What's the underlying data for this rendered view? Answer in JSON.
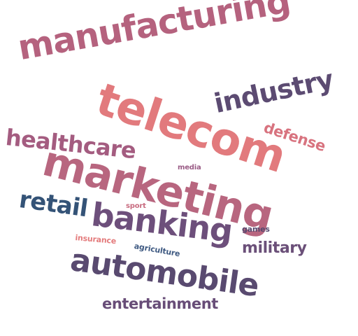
{
  "words": [
    {
      "text": "manufacturing",
      "color": "#b5627e"
    },
    {
      "text": "telecom",
      "color": "#e27a7d"
    },
    {
      "text": "industry",
      "color": "#5c4b72"
    },
    {
      "text": "defense",
      "color": "#d8737f"
    },
    {
      "text": "healthcare",
      "color": "#a45c80"
    },
    {
      "text": "marketing",
      "color": "#b8667f"
    },
    {
      "text": "media",
      "color": "#9a5c86"
    },
    {
      "text": "retail",
      "color": "#345377"
    },
    {
      "text": "sport",
      "color": "#c86c80"
    },
    {
      "text": "banking",
      "color": "#6d4f7b"
    },
    {
      "text": "games",
      "color": "#56486e"
    },
    {
      "text": "insurance",
      "color": "#e47c7d"
    },
    {
      "text": "agriculture",
      "color": "#3f5a82"
    },
    {
      "text": "military",
      "color": "#6b5079"
    },
    {
      "text": "automobile",
      "color": "#594a70"
    },
    {
      "text": "entertainment",
      "color": "#684d78"
    }
  ]
}
